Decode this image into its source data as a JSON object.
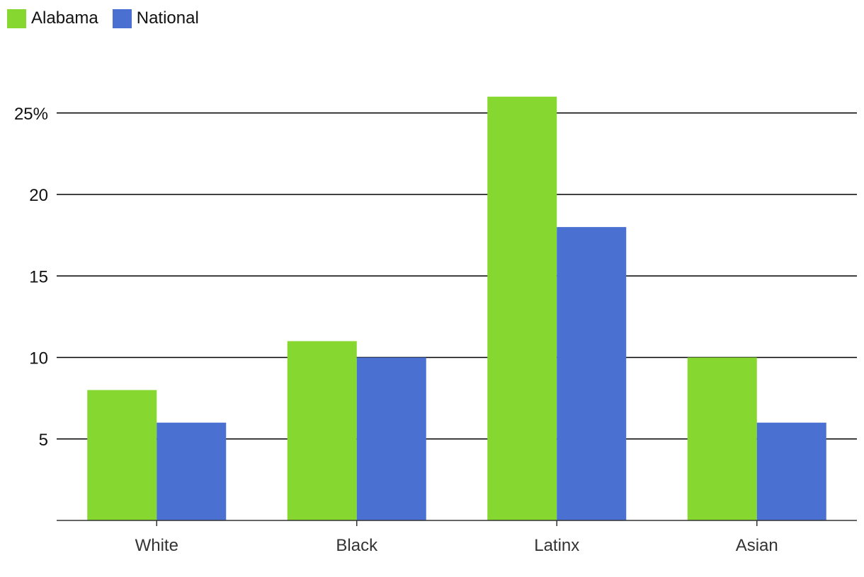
{
  "chart_data": {
    "type": "bar",
    "categories": [
      "White",
      "Black",
      "Latinx",
      "Asian"
    ],
    "series": [
      {
        "name": "Alabama",
        "color": "#86d72f",
        "values": [
          8,
          11,
          26,
          10
        ]
      },
      {
        "name": "National",
        "color": "#4a71d1",
        "values": [
          6,
          10,
          18,
          6
        ]
      }
    ],
    "yticks": [
      {
        "value": 5,
        "label": "5"
      },
      {
        "value": 10,
        "label": "10"
      },
      {
        "value": 15,
        "label": "15"
      },
      {
        "value": 20,
        "label": "20"
      },
      {
        "value": 25,
        "label": "25%"
      }
    ],
    "ylim": [
      0,
      26
    ],
    "grid": true,
    "legend_position": "top-left"
  }
}
